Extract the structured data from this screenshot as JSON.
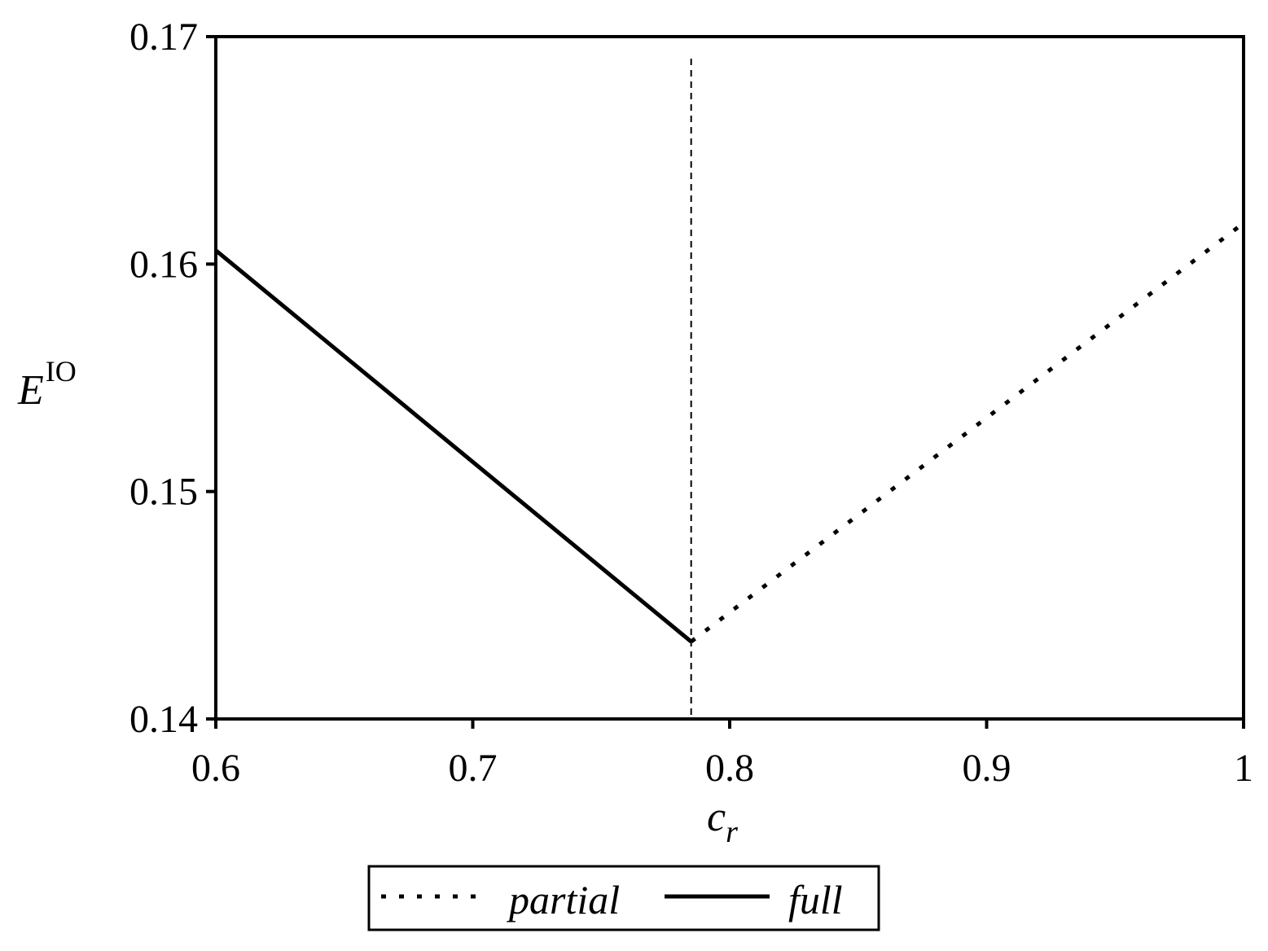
{
  "chart_data": {
    "type": "line",
    "xlabel": "c",
    "xlabel_sub": "r",
    "ylabel": "E",
    "ylabel_sup": "IO",
    "xlim": [
      0.6,
      1.0
    ],
    "ylim": [
      0.14,
      0.17
    ],
    "xticks": [
      "0.6",
      "0.7",
      "0.8",
      "0.9",
      "1"
    ],
    "yticks": [
      "0.14",
      "0.15",
      "0.16",
      "0.17"
    ],
    "xtick_values": [
      0.6,
      0.7,
      0.8,
      0.9,
      1.0
    ],
    "ytick_values": [
      0.14,
      0.15,
      0.16,
      0.17
    ],
    "vertical_reference_line": {
      "x": 0.785,
      "style": "dashed"
    },
    "series": [
      {
        "name": "full",
        "style": "solid",
        "x": [
          0.6,
          0.785
        ],
        "y": [
          0.1606,
          0.1434
        ]
      },
      {
        "name": "partial",
        "style": "dotted",
        "x": [
          0.785,
          1.0
        ],
        "y": [
          0.1434,
          0.1618
        ]
      }
    ],
    "legend": {
      "position": "bottom-center",
      "entries": [
        "partial",
        "full"
      ]
    },
    "grid": false,
    "colors": {
      "line": "#000000",
      "background": "#ffffff"
    }
  }
}
